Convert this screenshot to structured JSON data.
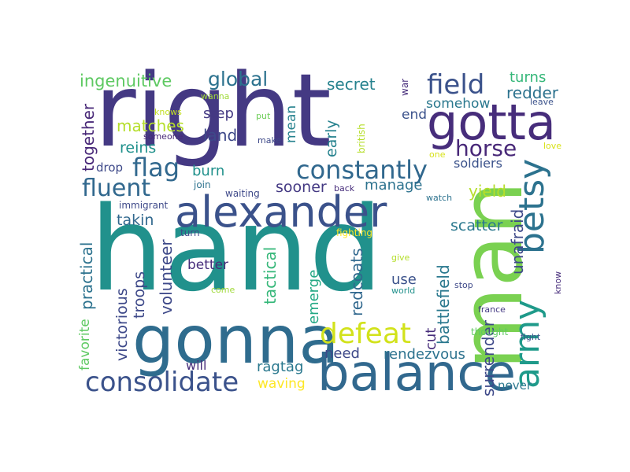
{
  "words": [
    {
      "text": "hand",
      "color": "#21918c"
    },
    {
      "text": "right",
      "color": "#443983"
    },
    {
      "text": "man",
      "color": "#7ad151"
    },
    {
      "text": "gonna",
      "color": "#2f6c8e"
    },
    {
      "text": "alexander",
      "color": "#3b528b"
    },
    {
      "text": "balance",
      "color": "#31688e"
    },
    {
      "text": "gotta",
      "color": "#472d7b"
    },
    {
      "text": "army",
      "color": "#1f9a8a"
    },
    {
      "text": "betsy",
      "color": "#2c728e"
    },
    {
      "text": "constantly",
      "color": "#31688e"
    },
    {
      "text": "consolidate",
      "color": "#3b528b"
    },
    {
      "text": "defeat",
      "color": "#d2e21b"
    },
    {
      "text": "fluent",
      "color": "#31688e"
    },
    {
      "text": "flag",
      "color": "#31688e"
    },
    {
      "text": "field",
      "color": "#3b528b"
    },
    {
      "text": "global",
      "color": "#2c728e"
    },
    {
      "text": "horse",
      "color": "#482878"
    },
    {
      "text": "ingenuitive",
      "color": "#5ec962"
    },
    {
      "text": "matches",
      "color": "#b5de2b"
    },
    {
      "text": "secret",
      "color": "#26828e"
    },
    {
      "text": "turns",
      "color": "#35b779"
    },
    {
      "text": "redder",
      "color": "#2c728e"
    },
    {
      "text": "somehow",
      "color": "#2a788e"
    },
    {
      "text": "end",
      "color": "#3b528b"
    },
    {
      "text": "together",
      "color": "#482878"
    },
    {
      "text": "step",
      "color": "#443983"
    },
    {
      "text": "land",
      "color": "#3e4989"
    },
    {
      "text": "reins",
      "color": "#21918c"
    },
    {
      "text": "drop",
      "color": "#3e4989"
    },
    {
      "text": "burn",
      "color": "#21918c"
    },
    {
      "text": "soldiers",
      "color": "#3b528b"
    },
    {
      "text": "manage",
      "color": "#2c728e"
    },
    {
      "text": "sooner",
      "color": "#443983"
    },
    {
      "text": "yield",
      "color": "#b5de2b"
    },
    {
      "text": "takin",
      "color": "#31688e"
    },
    {
      "text": "practical",
      "color": "#2c728e"
    },
    {
      "text": "volunteer",
      "color": "#3e4989"
    },
    {
      "text": "tactical",
      "color": "#35b779"
    },
    {
      "text": "emerge",
      "color": "#22a884"
    },
    {
      "text": "redcoats",
      "color": "#31688e"
    },
    {
      "text": "battlefield",
      "color": "#2a788e"
    },
    {
      "text": "scatter",
      "color": "#2a788e"
    },
    {
      "text": "unafraid",
      "color": "#3e4989"
    },
    {
      "text": "surrender",
      "color": "#3e4989"
    },
    {
      "text": "victorious",
      "color": "#3e4989"
    },
    {
      "text": "troops",
      "color": "#3e4989"
    },
    {
      "text": "favorite",
      "color": "#5ec962"
    },
    {
      "text": "better",
      "color": "#472d7b"
    },
    {
      "text": "use",
      "color": "#3b528b"
    },
    {
      "text": "cut",
      "color": "#472d7b"
    },
    {
      "text": "need",
      "color": "#3e4989"
    },
    {
      "text": "rendezvous",
      "color": "#2c728e"
    },
    {
      "text": "ragtag",
      "color": "#2a788e"
    },
    {
      "text": "waving",
      "color": "#fde725"
    },
    {
      "text": "will",
      "color": "#472d7b"
    },
    {
      "text": "never",
      "color": "#2a788e"
    },
    {
      "text": "mean",
      "color": "#26828e"
    },
    {
      "text": "early",
      "color": "#26828e"
    },
    {
      "text": "british",
      "color": "#b5de2b"
    },
    {
      "text": "war",
      "color": "#472d7b"
    },
    {
      "text": "one",
      "color": "#d8e219"
    },
    {
      "text": "knows",
      "color": "#c2df23"
    },
    {
      "text": "wanna",
      "color": "#a0da39"
    },
    {
      "text": "put",
      "color": "#6ece58"
    },
    {
      "text": "someone",
      "color": "#482878"
    },
    {
      "text": "make",
      "color": "#3e4989"
    },
    {
      "text": "leave",
      "color": "#3b528b"
    },
    {
      "text": "love",
      "color": "#d8e219"
    },
    {
      "text": "immigrant",
      "color": "#3e4989"
    },
    {
      "text": "join",
      "color": "#2c728e"
    },
    {
      "text": "waiting",
      "color": "#3e4989"
    },
    {
      "text": "back",
      "color": "#472d7b"
    },
    {
      "text": "watch",
      "color": "#2c728e"
    },
    {
      "text": "turn",
      "color": "#3e4989"
    },
    {
      "text": "fighting",
      "color": "#fde725"
    },
    {
      "text": "give",
      "color": "#b5de2b"
    },
    {
      "text": "come",
      "color": "#a0da39"
    },
    {
      "text": "world",
      "color": "#21918c"
    },
    {
      "text": "stop",
      "color": "#3e4989"
    },
    {
      "text": "france",
      "color": "#443983"
    },
    {
      "text": "thought",
      "color": "#5ec962"
    },
    {
      "text": "fight",
      "color": "#3b528b"
    },
    {
      "text": "know",
      "color": "#472d7b"
    }
  ]
}
